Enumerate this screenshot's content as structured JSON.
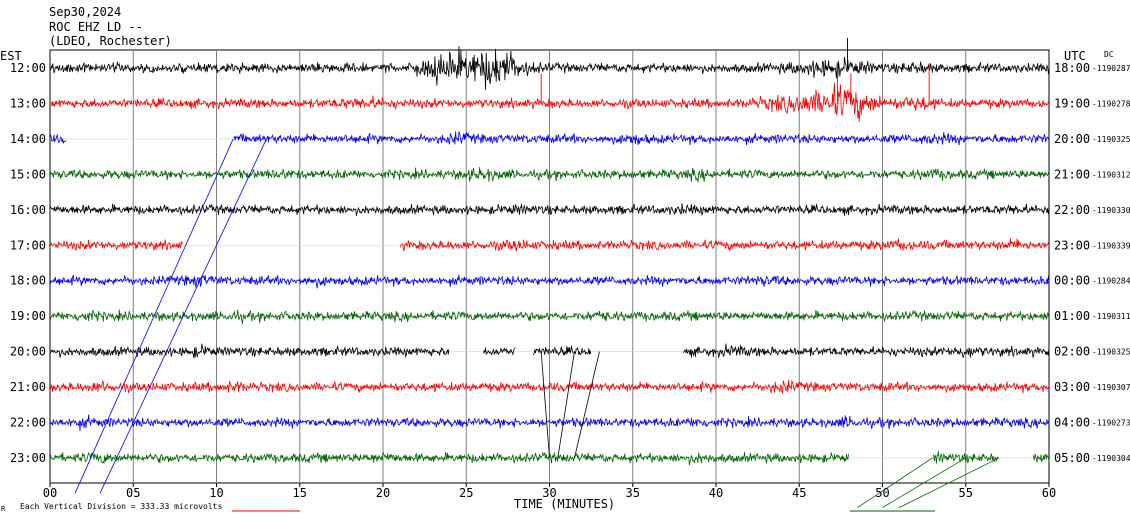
{
  "header": {
    "date": "Sep30,2024",
    "station": "ROC EHZ LD --",
    "network": "(LDEO, Rochester)"
  },
  "labels": {
    "left_zone": "EST",
    "right_zone": "UTC",
    "dc": "DC",
    "xlabel": "TIME (MINUTES)",
    "scale_note": "Each Vertical Division = 333.33 microvolts",
    "corner_mark": "R"
  },
  "chart_data": {
    "type": "line",
    "title": "",
    "xlabel": "TIME (MINUTES)",
    "ylabel": "",
    "xlim": [
      0,
      60
    ],
    "x_ticks": [
      "00",
      "05",
      "10",
      "15",
      "20",
      "25",
      "30",
      "35",
      "40",
      "45",
      "50",
      "55",
      "60"
    ],
    "grid": true,
    "color_cycle": [
      "#000000",
      "#ff0000",
      "#0000ff",
      "#006400"
    ],
    "rows": [
      {
        "est": "12:00",
        "utc": "18:00",
        "dc": "-1190287",
        "color": "#000000",
        "gaps": []
      },
      {
        "est": "13:00",
        "utc": "19:00",
        "dc": "-1190278",
        "color": "#ff0000",
        "gaps": []
      },
      {
        "est": "14:00",
        "utc": "20:00",
        "dc": "-1190325",
        "color": "#0000ff",
        "gaps": [
          [
            1,
            11
          ]
        ]
      },
      {
        "est": "15:00",
        "utc": "21:00",
        "dc": "-1190312",
        "color": "#006400",
        "gaps": []
      },
      {
        "est": "16:00",
        "utc": "22:00",
        "dc": "-1190330",
        "color": "#000000",
        "gaps": []
      },
      {
        "est": "17:00",
        "utc": "23:00",
        "dc": "-1190339",
        "color": "#ff0000",
        "gaps": [
          [
            8,
            21
          ]
        ]
      },
      {
        "est": "18:00",
        "utc": "00:00",
        "dc": "-1190284",
        "color": "#0000ff",
        "gaps": []
      },
      {
        "est": "19:00",
        "utc": "01:00",
        "dc": "-1190311",
        "color": "#006400",
        "gaps": []
      },
      {
        "est": "20:00",
        "utc": "02:00",
        "dc": "-1190325",
        "color": "#000000",
        "gaps": [
          [
            24,
            26
          ],
          [
            28,
            29
          ],
          [
            32.5,
            38
          ]
        ]
      },
      {
        "est": "21:00",
        "utc": "03:00",
        "dc": "-1190307",
        "color": "#ff0000",
        "gaps": []
      },
      {
        "est": "22:00",
        "utc": "04:00",
        "dc": "-1190273",
        "color": "#0000ff",
        "gaps": []
      },
      {
        "est": "23:00",
        "utc": "05:00",
        "dc": "-1190304",
        "color": "#006400",
        "gaps": [
          [
            48,
            53
          ],
          [
            57,
            59
          ]
        ]
      }
    ]
  }
}
